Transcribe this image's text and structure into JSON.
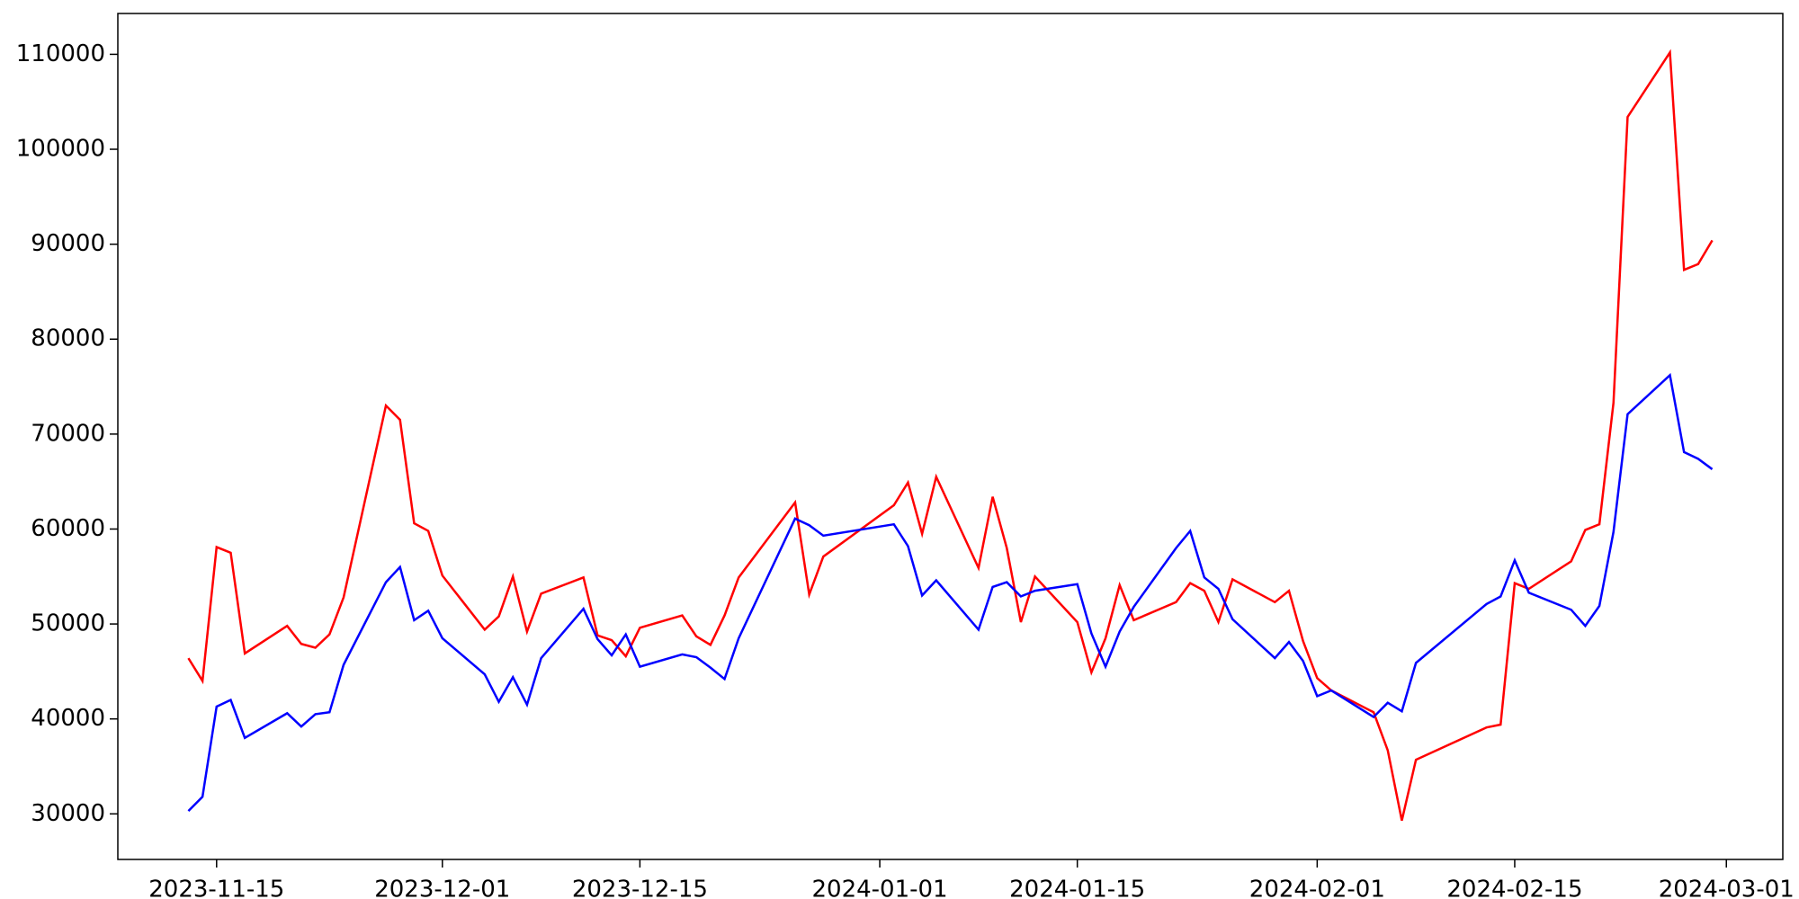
{
  "chart_data": {
    "type": "line",
    "x": [
      "2023-11-13",
      "2023-11-14",
      "2023-11-15",
      "2023-11-16",
      "2023-11-17",
      "2023-11-20",
      "2023-11-21",
      "2023-11-22",
      "2023-11-23",
      "2023-11-24",
      "2023-11-27",
      "2023-11-28",
      "2023-11-29",
      "2023-11-30",
      "2023-12-01",
      "2023-12-04",
      "2023-12-05",
      "2023-12-06",
      "2023-12-07",
      "2023-12-08",
      "2023-12-11",
      "2023-12-12",
      "2023-12-13",
      "2023-12-14",
      "2023-12-15",
      "2023-12-18",
      "2023-12-19",
      "2023-12-20",
      "2023-12-21",
      "2023-12-22",
      "2023-12-26",
      "2023-12-27",
      "2023-12-28",
      "2024-01-02",
      "2024-01-03",
      "2024-01-04",
      "2024-01-05",
      "2024-01-08",
      "2024-01-09",
      "2024-01-10",
      "2024-01-11",
      "2024-01-12",
      "2024-01-15",
      "2024-01-16",
      "2024-01-17",
      "2024-01-18",
      "2024-01-19",
      "2024-01-22",
      "2024-01-23",
      "2024-01-24",
      "2024-01-25",
      "2024-01-26",
      "2024-01-29",
      "2024-01-30",
      "2024-01-31",
      "2024-02-01",
      "2024-02-02",
      "2024-02-05",
      "2024-02-06",
      "2024-02-07",
      "2024-02-08",
      "2024-02-13",
      "2024-02-14",
      "2024-02-15",
      "2024-02-16",
      "2024-02-19",
      "2024-02-20",
      "2024-02-21",
      "2024-02-22",
      "2024-02-23",
      "2024-02-26",
      "2024-02-27",
      "2024-02-28",
      "2024-02-29"
    ],
    "series": [
      {
        "color": "#ff0000",
        "values": [
          46400,
          44000,
          58100,
          57500,
          46900,
          49800,
          47900,
          47500,
          48900,
          52800,
          73000,
          71500,
          60600,
          59800,
          55100,
          49400,
          50800,
          55000,
          49200,
          53200,
          54900,
          48800,
          48300,
          46600,
          49600,
          50900,
          48700,
          47800,
          50900,
          54900,
          62800,
          53100,
          57100,
          62500,
          64900,
          59500,
          65500,
          55900,
          63400,
          58000,
          50200,
          55000,
          50200,
          44900,
          48500,
          54100,
          50400,
          52300,
          54300,
          53500,
          50200,
          54700,
          52300,
          53500,
          48200,
          44300,
          43000,
          40700,
          36700,
          29300,
          35700,
          39100,
          39400,
          54300,
          53700,
          56600,
          59900,
          60500,
          73300,
          103400,
          110200,
          87300,
          87900,
          90400
        ]
      },
      {
        "color": "#0000ff",
        "values": [
          30300,
          31800,
          41300,
          42000,
          38000,
          40600,
          39200,
          40500,
          40700,
          45700,
          54400,
          56000,
          50400,
          51400,
          48500,
          44700,
          41800,
          44400,
          41500,
          46400,
          51600,
          48400,
          46700,
          48900,
          45500,
          46800,
          46500,
          45400,
          44200,
          48500,
          61100,
          60400,
          59300,
          60500,
          58200,
          53000,
          54600,
          49400,
          53900,
          54400,
          52900,
          53500,
          54200,
          49000,
          45500,
          49200,
          51800,
          58000,
          59800,
          54900,
          53700,
          50500,
          46400,
          48100,
          46100,
          42400,
          43000,
          40200,
          41700,
          40800,
          45900,
          52100,
          52900,
          56700,
          53300,
          51500,
          49800,
          51900,
          59700,
          72100,
          76200,
          68100,
          67400,
          66300
        ]
      }
    ],
    "xlim": [
      "2023-11-08",
      "2024-03-05"
    ],
    "xticks": [
      "2023-11-15",
      "2023-12-01",
      "2023-12-15",
      "2024-01-01",
      "2024-01-15",
      "2024-02-01",
      "2024-02-15",
      "2024-03-01"
    ],
    "ylim": [
      25200,
      114300
    ],
    "yticks": [
      30000,
      40000,
      50000,
      60000,
      70000,
      80000,
      90000,
      100000,
      110000
    ]
  }
}
